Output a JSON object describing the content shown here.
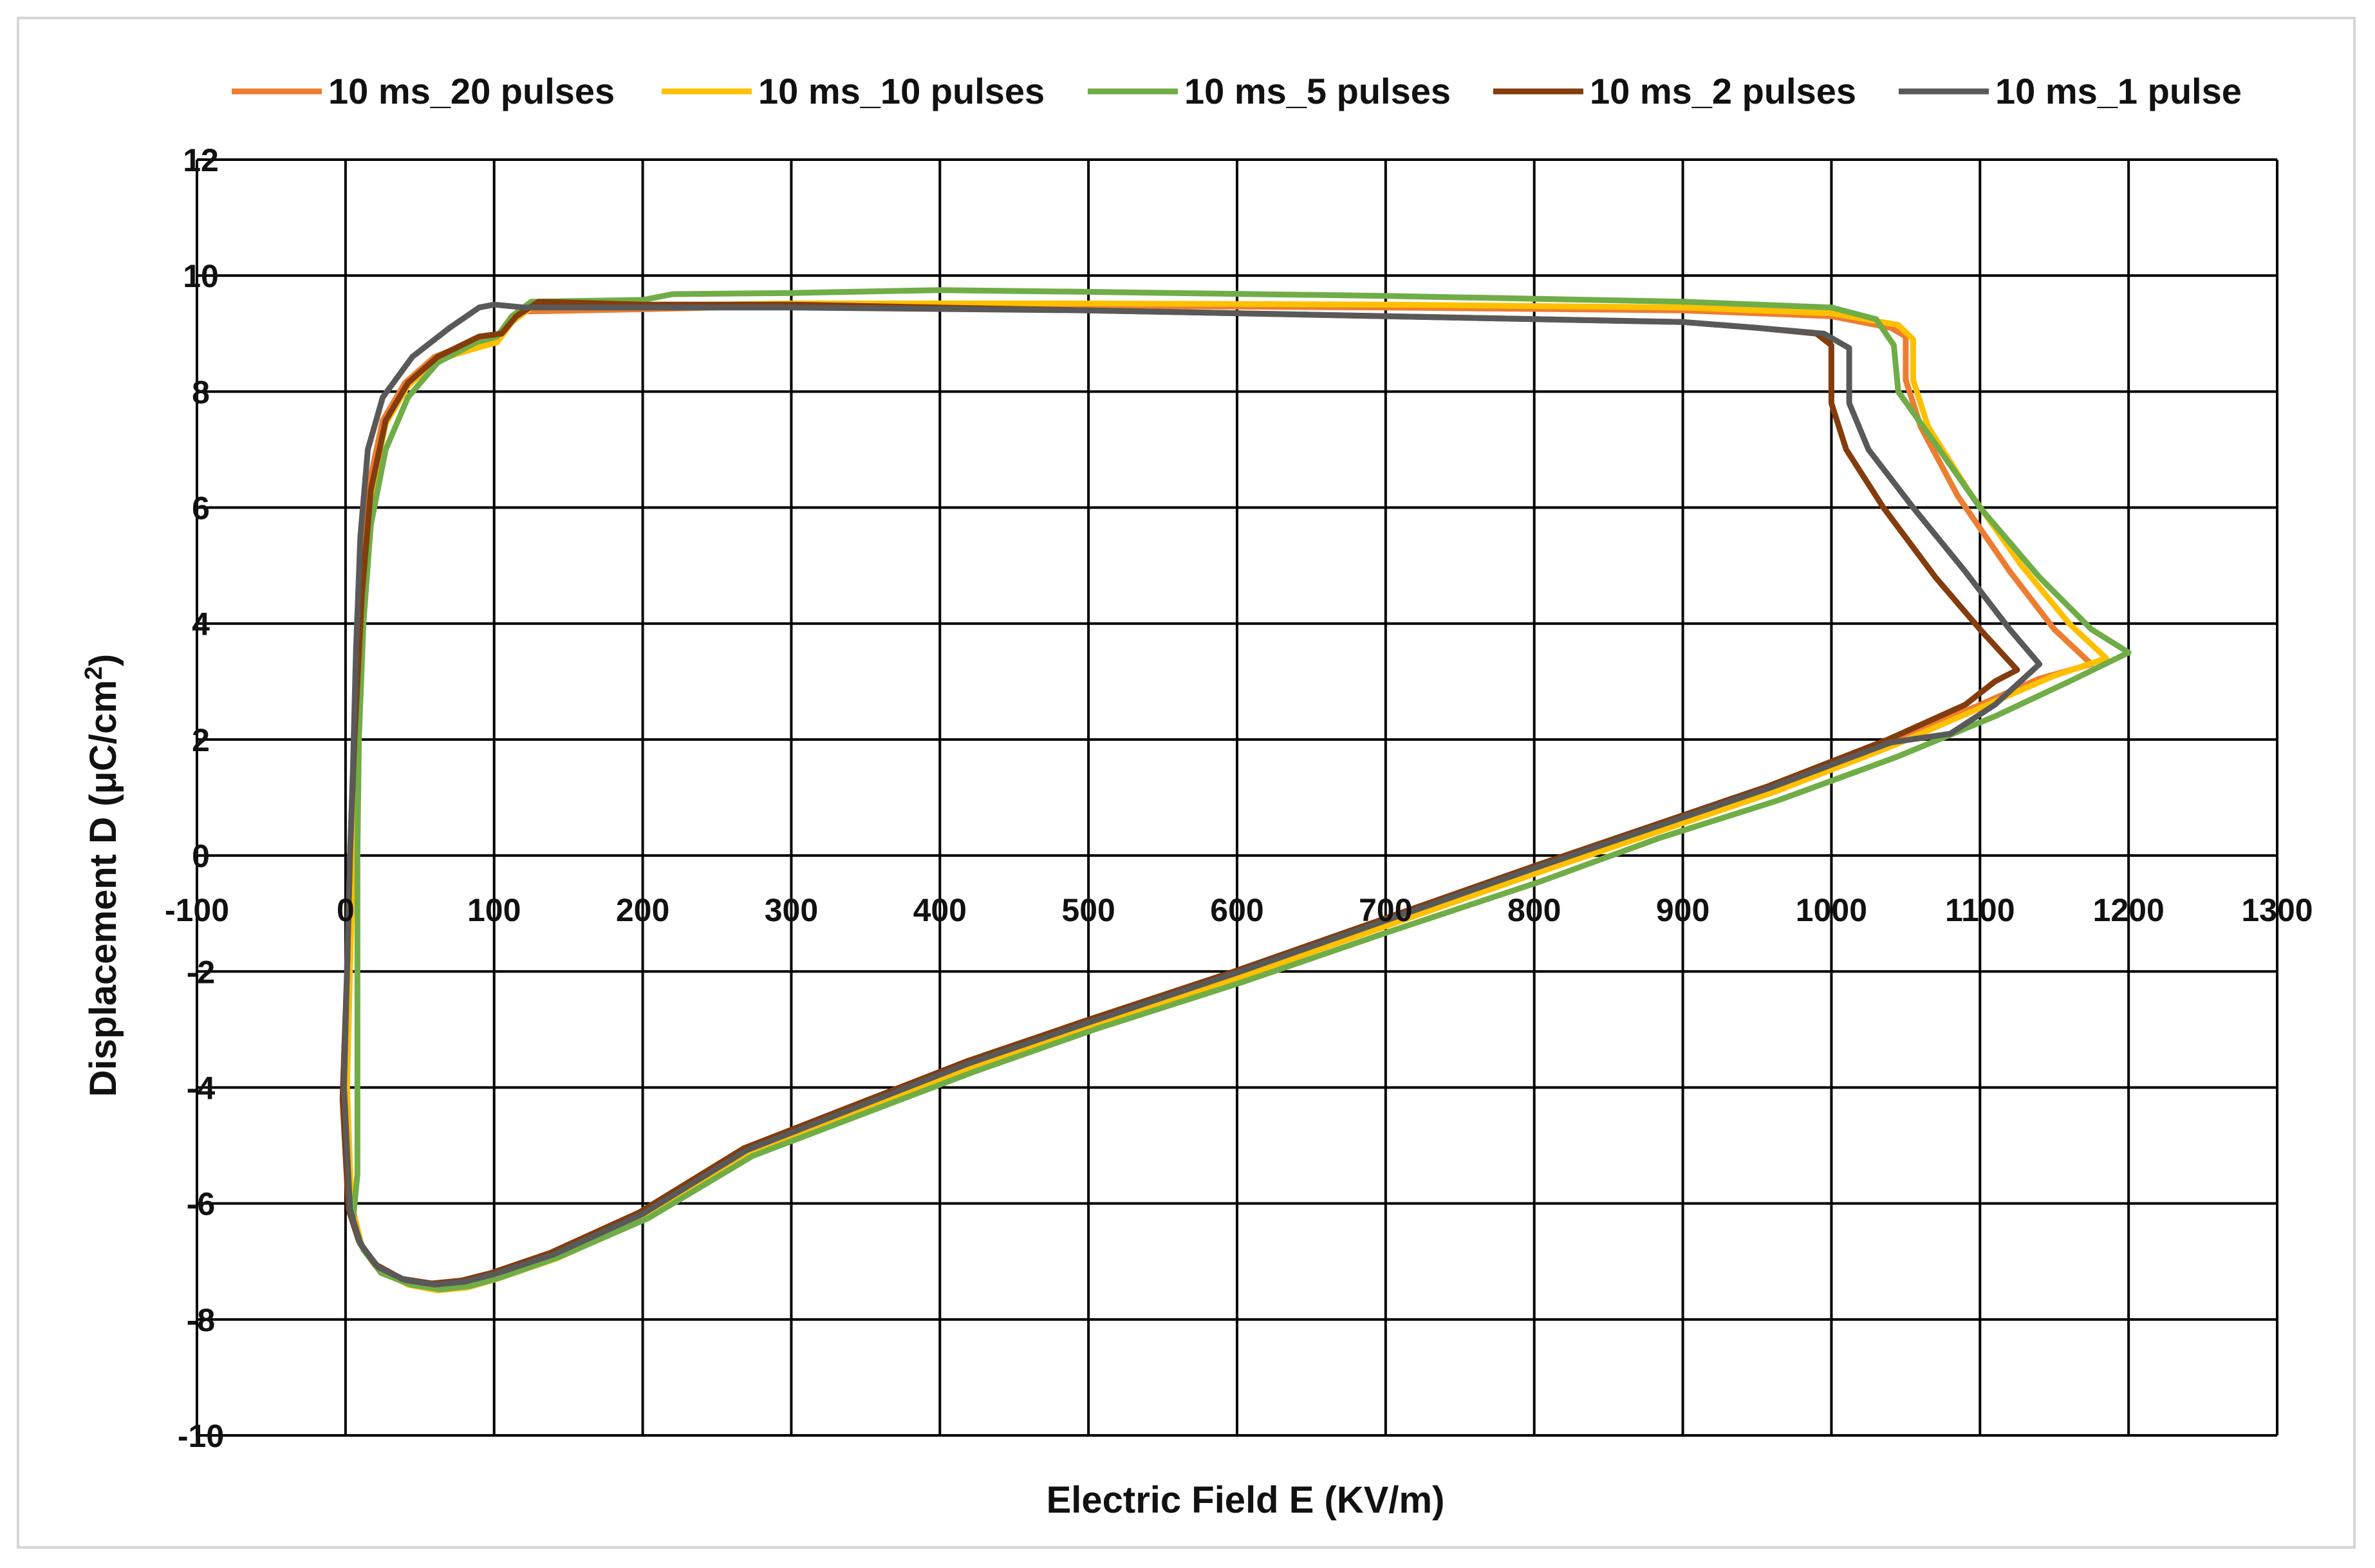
{
  "chart_data": {
    "type": "line",
    "title": "",
    "xlabel": "Electric Field E (KV/m)",
    "ylabel_main": "Displacement D (μC/cm",
    "ylabel_sup": "2",
    "ylabel_end": ")",
    "xlim": [
      -100,
      1300
    ],
    "ylim": [
      -10,
      12
    ],
    "x_ticks": [
      "-100",
      "0",
      "100",
      "200",
      "300",
      "400",
      "500",
      "600",
      "700",
      "800",
      "900",
      "1000",
      "1100",
      "1200",
      "1300"
    ],
    "y_ticks": [
      "-10",
      "-8",
      "-6",
      "-4",
      "-2",
      "0",
      "2",
      "4",
      "6",
      "8",
      "10",
      "12"
    ],
    "grid": "on",
    "legend_position": "top",
    "series": [
      {
        "name": "10 ms_20 pulses",
        "color": "#ED7D31",
        "points": [
          [
            0,
            -4
          ],
          [
            3,
            -6
          ],
          [
            10,
            -6.7
          ],
          [
            22,
            -7.1
          ],
          [
            40,
            -7.35
          ],
          [
            60,
            -7.45
          ],
          [
            80,
            -7.4
          ],
          [
            100,
            -7.25
          ],
          [
            140,
            -6.9
          ],
          [
            200,
            -6.2
          ],
          [
            270,
            -5.1
          ],
          [
            350,
            -4.3
          ],
          [
            420,
            -3.6
          ],
          [
            500,
            -2.9
          ],
          [
            600,
            -2.05
          ],
          [
            700,
            -1.15
          ],
          [
            800,
            -0.25
          ],
          [
            880,
            0.45
          ],
          [
            960,
            1.15
          ],
          [
            1040,
            1.95
          ],
          [
            1100,
            2.6
          ],
          [
            1140,
            3.05
          ],
          [
            1175,
            3.3
          ],
          [
            1150,
            3.9
          ],
          [
            1120,
            4.9
          ],
          [
            1085,
            6.2
          ],
          [
            1060,
            7.4
          ],
          [
            1050,
            8.2
          ],
          [
            1050,
            8.95
          ],
          [
            1040,
            9.1
          ],
          [
            1000,
            9.3
          ],
          [
            900,
            9.4
          ],
          [
            700,
            9.45
          ],
          [
            500,
            9.48
          ],
          [
            300,
            9.48
          ],
          [
            200,
            9.42
          ],
          [
            120,
            9.38
          ],
          [
            110,
            9.2
          ],
          [
            100,
            8.9
          ],
          [
            85,
            8.85
          ],
          [
            60,
            8.6
          ],
          [
            40,
            8.15
          ],
          [
            25,
            7.5
          ],
          [
            15,
            6.3
          ],
          [
            10,
            4.5
          ],
          [
            6,
            2
          ],
          [
            4,
            0
          ],
          [
            2,
            -2
          ],
          [
            0,
            -4
          ]
        ]
      },
      {
        "name": "10 ms_10 pulses",
        "color": "#FFC000",
        "points": [
          [
            1,
            -4
          ],
          [
            4,
            -6
          ],
          [
            11,
            -6.75
          ],
          [
            24,
            -7.15
          ],
          [
            42,
            -7.4
          ],
          [
            62,
            -7.5
          ],
          [
            82,
            -7.45
          ],
          [
            102,
            -7.3
          ],
          [
            142,
            -6.95
          ],
          [
            202,
            -6.25
          ],
          [
            272,
            -5.15
          ],
          [
            352,
            -4.35
          ],
          [
            422,
            -3.65
          ],
          [
            502,
            -2.95
          ],
          [
            602,
            -2.1
          ],
          [
            702,
            -1.2
          ],
          [
            802,
            -0.3
          ],
          [
            882,
            0.4
          ],
          [
            962,
            1.1
          ],
          [
            1042,
            1.9
          ],
          [
            1105,
            2.6
          ],
          [
            1150,
            3.1
          ],
          [
            1185,
            3.4
          ],
          [
            1160,
            4.0
          ],
          [
            1128,
            5.0
          ],
          [
            1092,
            6.3
          ],
          [
            1065,
            7.4
          ],
          [
            1055,
            8.2
          ],
          [
            1055,
            8.9
          ],
          [
            1045,
            9.15
          ],
          [
            1000,
            9.35
          ],
          [
            900,
            9.45
          ],
          [
            700,
            9.5
          ],
          [
            500,
            9.52
          ],
          [
            300,
            9.52
          ],
          [
            200,
            9.48
          ],
          [
            125,
            9.45
          ],
          [
            112,
            9.2
          ],
          [
            102,
            8.85
          ],
          [
            88,
            8.75
          ],
          [
            62,
            8.55
          ],
          [
            42,
            8.1
          ],
          [
            27,
            7.45
          ],
          [
            17,
            6.2
          ],
          [
            11,
            4.4
          ],
          [
            7,
            2
          ],
          [
            5,
            0
          ],
          [
            3,
            -2
          ],
          [
            1,
            -4
          ]
        ]
      },
      {
        "name": "10 ms_5 pulses",
        "color": "#70AD47",
        "points": [
          [
            8,
            -5.5
          ],
          [
            5,
            -6.3
          ],
          [
            12,
            -6.8
          ],
          [
            24,
            -7.2
          ],
          [
            44,
            -7.4
          ],
          [
            64,
            -7.48
          ],
          [
            84,
            -7.42
          ],
          [
            104,
            -7.28
          ],
          [
            144,
            -6.92
          ],
          [
            204,
            -6.25
          ],
          [
            274,
            -5.18
          ],
          [
            354,
            -4.4
          ],
          [
            424,
            -3.72
          ],
          [
            504,
            -3.0
          ],
          [
            604,
            -2.18
          ],
          [
            704,
            -1.3
          ],
          [
            804,
            -0.45
          ],
          [
            884,
            0.3
          ],
          [
            964,
            0.95
          ],
          [
            1044,
            1.7
          ],
          [
            1110,
            2.4
          ],
          [
            1160,
            3.0
          ],
          [
            1200,
            3.5
          ],
          [
            1175,
            3.9
          ],
          [
            1140,
            4.8
          ],
          [
            1100,
            6.0
          ],
          [
            1070,
            7.1
          ],
          [
            1045,
            8.0
          ],
          [
            1042,
            8.8
          ],
          [
            1030,
            9.25
          ],
          [
            1000,
            9.45
          ],
          [
            900,
            9.55
          ],
          [
            700,
            9.65
          ],
          [
            500,
            9.72
          ],
          [
            400,
            9.75
          ],
          [
            300,
            9.7
          ],
          [
            220,
            9.68
          ],
          [
            200,
            9.58
          ],
          [
            125,
            9.55
          ],
          [
            112,
            9.3
          ],
          [
            102,
            8.95
          ],
          [
            88,
            8.85
          ],
          [
            62,
            8.5
          ],
          [
            42,
            7.9
          ],
          [
            27,
            7.0
          ],
          [
            17,
            5.7
          ],
          [
            12,
            4.0
          ],
          [
            9,
            2
          ],
          [
            8,
            0
          ],
          [
            8,
            -2
          ],
          [
            8,
            -5.5
          ]
        ]
      },
      {
        "name": "10 ms_2 pulses",
        "color": "#843C0C",
        "points": [
          [
            -2,
            -4.2
          ],
          [
            2,
            -6.1
          ],
          [
            9,
            -6.65
          ],
          [
            20,
            -7.05
          ],
          [
            38,
            -7.3
          ],
          [
            58,
            -7.38
          ],
          [
            78,
            -7.33
          ],
          [
            98,
            -7.2
          ],
          [
            138,
            -6.85
          ],
          [
            198,
            -6.15
          ],
          [
            268,
            -5.05
          ],
          [
            348,
            -4.25
          ],
          [
            418,
            -3.55
          ],
          [
            498,
            -2.85
          ],
          [
            598,
            -2.0
          ],
          [
            698,
            -1.1
          ],
          [
            798,
            -0.2
          ],
          [
            878,
            0.5
          ],
          [
            958,
            1.2
          ],
          [
            1038,
            2.0
          ],
          [
            1090,
            2.6
          ],
          [
            1110,
            3.0
          ],
          [
            1125,
            3.2
          ],
          [
            1100,
            3.9
          ],
          [
            1070,
            4.8
          ],
          [
            1035,
            6.0
          ],
          [
            1010,
            7.0
          ],
          [
            1000,
            7.8
          ],
          [
            1000,
            8.8
          ],
          [
            990,
            9.0
          ],
          [
            950,
            9.1
          ],
          [
            900,
            9.2
          ],
          [
            700,
            9.3
          ],
          [
            500,
            9.4
          ],
          [
            300,
            9.5
          ],
          [
            200,
            9.5
          ],
          [
            130,
            9.55
          ],
          [
            115,
            9.3
          ],
          [
            105,
            9.0
          ],
          [
            90,
            8.95
          ],
          [
            62,
            8.6
          ],
          [
            42,
            8.15
          ],
          [
            27,
            7.5
          ],
          [
            17,
            6.3
          ],
          [
            11,
            4.5
          ],
          [
            6,
            2
          ],
          [
            3,
            0
          ],
          [
            1,
            -2
          ],
          [
            -2,
            -4.2
          ]
        ]
      },
      {
        "name": "10 ms_1 pulse",
        "color": "#595959",
        "points": [
          [
            -1,
            -4
          ],
          [
            3,
            -6.1
          ],
          [
            10,
            -6.7
          ],
          [
            22,
            -7.1
          ],
          [
            40,
            -7.32
          ],
          [
            60,
            -7.4
          ],
          [
            80,
            -7.35
          ],
          [
            100,
            -7.22
          ],
          [
            140,
            -6.88
          ],
          [
            200,
            -6.18
          ],
          [
            270,
            -5.08
          ],
          [
            350,
            -4.28
          ],
          [
            420,
            -3.58
          ],
          [
            500,
            -2.88
          ],
          [
            600,
            -2.02
          ],
          [
            700,
            -1.12
          ],
          [
            800,
            -0.22
          ],
          [
            880,
            0.48
          ],
          [
            960,
            1.18
          ],
          [
            1040,
            1.95
          ],
          [
            1080,
            2.1
          ],
          [
            1110,
            2.6
          ],
          [
            1140,
            3.3
          ],
          [
            1120,
            3.9
          ],
          [
            1090,
            4.9
          ],
          [
            1055,
            6.0
          ],
          [
            1025,
            7.0
          ],
          [
            1012,
            7.8
          ],
          [
            1012,
            8.75
          ],
          [
            995,
            9.0
          ],
          [
            950,
            9.1
          ],
          [
            900,
            9.2
          ],
          [
            700,
            9.3
          ],
          [
            500,
            9.4
          ],
          [
            300,
            9.45
          ],
          [
            200,
            9.45
          ],
          [
            120,
            9.45
          ],
          [
            100,
            9.5
          ],
          [
            90,
            9.45
          ],
          [
            70,
            9.1
          ],
          [
            45,
            8.6
          ],
          [
            25,
            7.9
          ],
          [
            15,
            7.0
          ],
          [
            10,
            5.5
          ],
          [
            7,
            3.5
          ],
          [
            5,
            1.5
          ],
          [
            3,
            0
          ],
          [
            1,
            -2
          ],
          [
            -1,
            -4
          ]
        ]
      }
    ]
  }
}
